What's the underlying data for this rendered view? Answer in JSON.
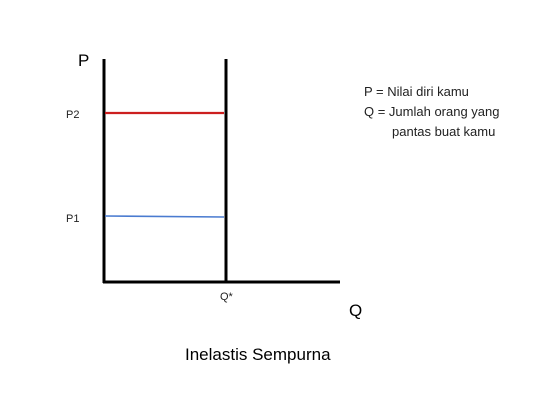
{
  "diagram": {
    "y_axis_label": "P",
    "x_axis_label": "Q",
    "price_labels": {
      "p2": "P2",
      "p1": "P1"
    },
    "quantity_label": "Q*",
    "legend": [
      "P = Nilai diri kamu",
      "Q = Jumlah orang yang",
      "pantas buat kamu"
    ],
    "title": "Inelastis Sempurna",
    "colors": {
      "axis": "#000000",
      "supply_line": "#000000",
      "p2_line": "#cc1f1f",
      "p1_line": "#4a7bd0",
      "background": "#ffffff"
    }
  }
}
